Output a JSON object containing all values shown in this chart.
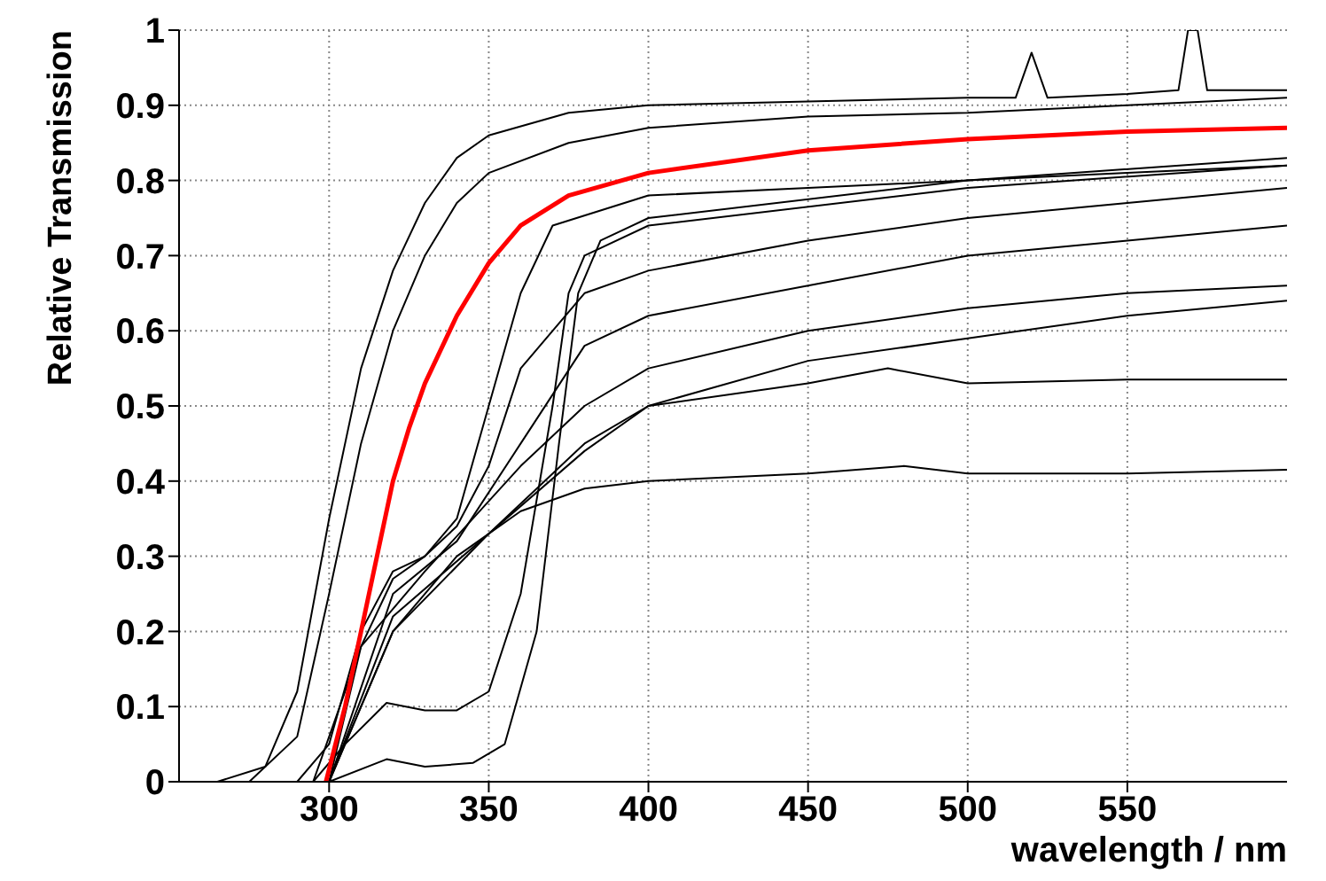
{
  "chart_data": {
    "type": "line",
    "xlabel": "wavelength / nm",
    "ylabel": "Relative Transmission",
    "xlim": [
      253,
      600
    ],
    "xticks": [
      300,
      350,
      400,
      450,
      500,
      550
    ],
    "ylim": [
      0,
      1
    ],
    "yticks": [
      0,
      0.1,
      0.2,
      0.3,
      0.4,
      0.5,
      0.6,
      0.7,
      0.8,
      0.9,
      1
    ],
    "grid": true,
    "series": [
      {
        "color": "#000000",
        "x": [
          265,
          280,
          290,
          300,
          310,
          320,
          330,
          340,
          350,
          375,
          400,
          450,
          500,
          515,
          520,
          525,
          550,
          566,
          569,
          572,
          575,
          600
        ],
        "values": [
          0,
          0.02,
          0.12,
          0.35,
          0.55,
          0.68,
          0.77,
          0.83,
          0.86,
          0.89,
          0.9,
          0.905,
          0.91,
          0.91,
          0.97,
          0.91,
          0.915,
          0.92,
          1,
          1,
          0.92,
          0.92
        ]
      },
      {
        "color": "#000000",
        "x": [
          275,
          290,
          300,
          310,
          320,
          330,
          340,
          350,
          375,
          400,
          450,
          500,
          550,
          600
        ],
        "values": [
          0,
          0.06,
          0.25,
          0.45,
          0.6,
          0.7,
          0.77,
          0.81,
          0.85,
          0.87,
          0.885,
          0.89,
          0.9,
          0.91
        ]
      },
      {
        "color": "#000000",
        "x": [
          290,
          300,
          310,
          320,
          330,
          340,
          350,
          360,
          370,
          400,
          450,
          500,
          550,
          600
        ],
        "values": [
          0,
          0.05,
          0.2,
          0.28,
          0.3,
          0.35,
          0.5,
          0.65,
          0.74,
          0.78,
          0.79,
          0.8,
          0.81,
          0.82
        ]
      },
      {
        "color": "#000000",
        "x": [
          295,
          310,
          320,
          330,
          340,
          350,
          360,
          380,
          400,
          450,
          500,
          550,
          600
        ],
        "values": [
          0,
          0.18,
          0.27,
          0.3,
          0.34,
          0.42,
          0.55,
          0.65,
          0.68,
          0.72,
          0.75,
          0.77,
          0.79
        ]
      },
      {
        "color": "#000000",
        "x": [
          300,
          320,
          340,
          360,
          380,
          400,
          450,
          500,
          550,
          600
        ],
        "values": [
          0,
          0.25,
          0.32,
          0.45,
          0.58,
          0.62,
          0.66,
          0.7,
          0.72,
          0.74
        ]
      },
      {
        "color": "#000000",
        "x": [
          300,
          310,
          330,
          360,
          380,
          400,
          450,
          500,
          550,
          600
        ],
        "values": [
          0,
          0.18,
          0.28,
          0.42,
          0.5,
          0.55,
          0.6,
          0.63,
          0.65,
          0.66
        ]
      },
      {
        "color": "#000000",
        "x": [
          300,
          320,
          350,
          380,
          400,
          450,
          500,
          550,
          600
        ],
        "values": [
          0,
          0.2,
          0.33,
          0.44,
          0.5,
          0.56,
          0.59,
          0.62,
          0.64
        ]
      },
      {
        "color": "#000000",
        "x": [
          300,
          320,
          350,
          380,
          400,
          450,
          475,
          500,
          550,
          600
        ],
        "values": [
          0,
          0.22,
          0.33,
          0.45,
          0.5,
          0.53,
          0.55,
          0.53,
          0.535,
          0.535
        ]
      },
      {
        "color": "#000000",
        "x": [
          300,
          320,
          340,
          360,
          380,
          400,
          450,
          480,
          500,
          550,
          600
        ],
        "values": [
          0,
          0.2,
          0.3,
          0.36,
          0.39,
          0.4,
          0.41,
          0.42,
          0.41,
          0.41,
          0.415
        ]
      },
      {
        "color": "#000000",
        "x": [
          295,
          305,
          318,
          330,
          340,
          350,
          360,
          370,
          375,
          380,
          400,
          500,
          600
        ],
        "values": [
          0,
          0.05,
          0.105,
          0.095,
          0.095,
          0.12,
          0.25,
          0.5,
          0.65,
          0.7,
          0.74,
          0.79,
          0.82
        ]
      },
      {
        "color": "#000000",
        "x": [
          300,
          318,
          330,
          345,
          355,
          365,
          372,
          378,
          385,
          400,
          500,
          600
        ],
        "values": [
          0,
          0.03,
          0.02,
          0.025,
          0.05,
          0.2,
          0.45,
          0.65,
          0.72,
          0.75,
          0.8,
          0.83
        ]
      },
      {
        "color": "#ff0000",
        "x": [
          299,
          305,
          310,
          315,
          320,
          325,
          330,
          340,
          350,
          360,
          375,
          400,
          450,
          500,
          550,
          600
        ],
        "values": [
          0,
          0.1,
          0.2,
          0.3,
          0.4,
          0.47,
          0.53,
          0.62,
          0.69,
          0.74,
          0.78,
          0.81,
          0.84,
          0.855,
          0.865,
          0.87
        ]
      }
    ]
  }
}
